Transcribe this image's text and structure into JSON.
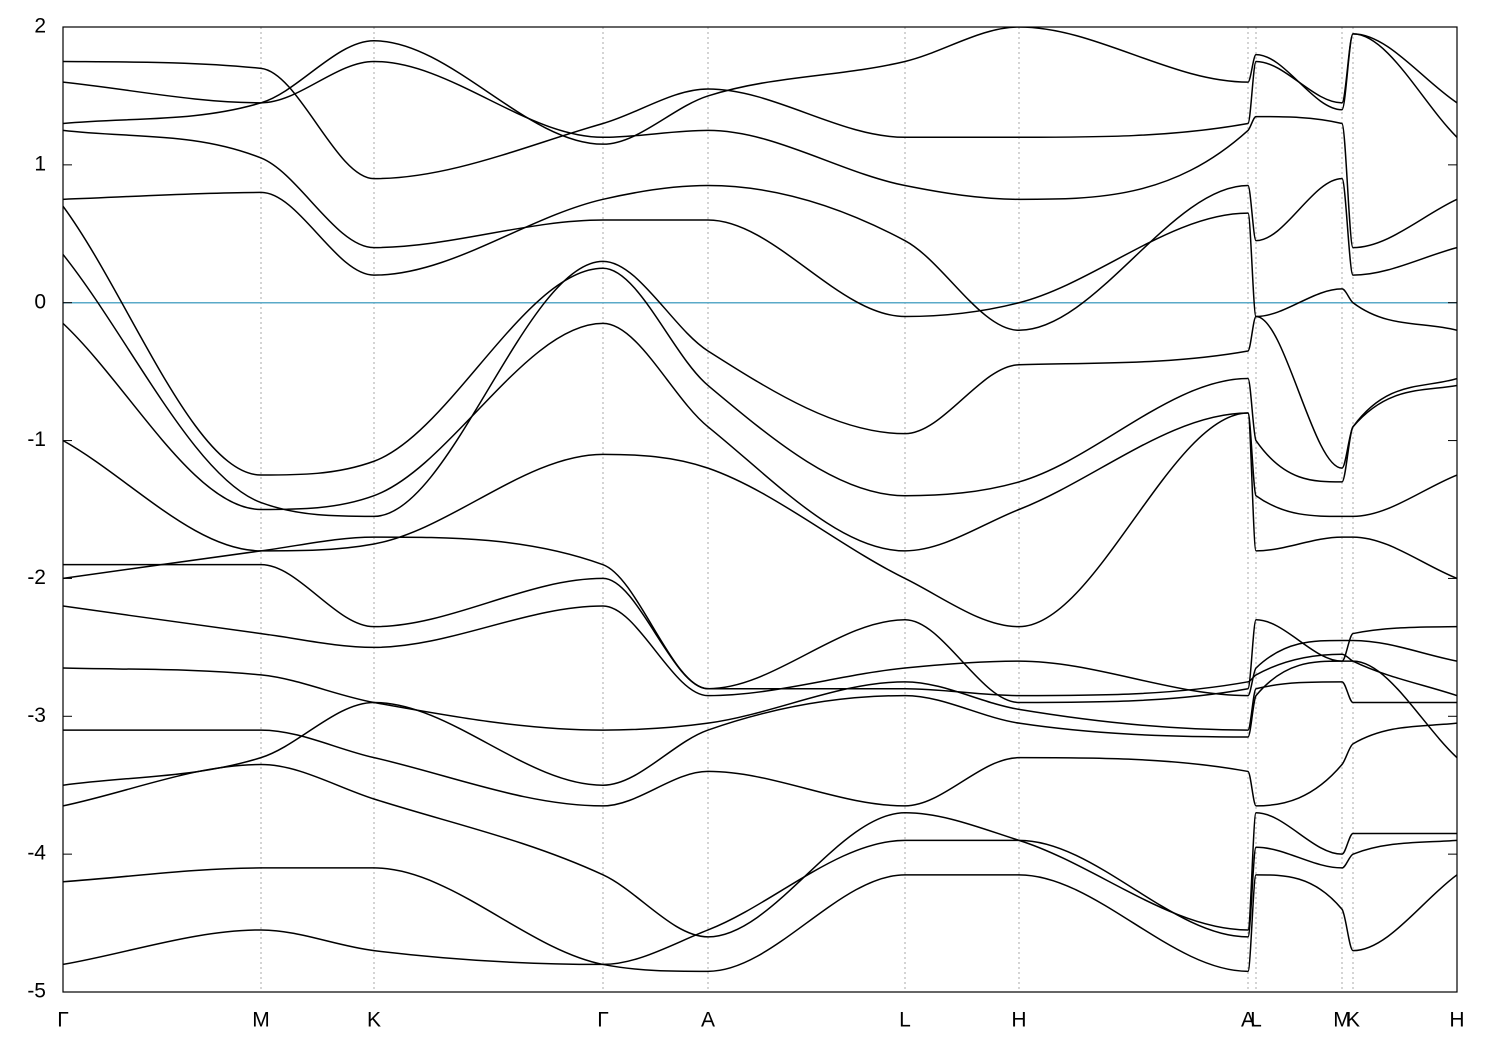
{
  "chart_data": {
    "type": "line",
    "x": [
      0,
      0.198,
      0.311,
      0.54,
      0.645,
      0.842,
      0.956,
      1.185,
      1.193,
      1.279,
      1.29,
      1.394
    ],
    "xlim": [
      0,
      1.394
    ],
    "xticks": [
      {
        "value": 0,
        "label": "Γ"
      },
      {
        "value": 0.198,
        "label": "M"
      },
      {
        "value": 0.311,
        "label": "K"
      },
      {
        "value": 0.54,
        "label": "Γ"
      },
      {
        "value": 0.645,
        "label": "A"
      },
      {
        "value": 0.842,
        "label": "L"
      },
      {
        "value": 0.956,
        "label": "H"
      },
      {
        "value": 1.185,
        "label": "A"
      },
      {
        "value": 1.193,
        "label": "L"
      },
      {
        "value": 1.279,
        "label": "M"
      },
      {
        "value": 1.29,
        "label": "K"
      },
      {
        "value": 1.394,
        "label": "H"
      }
    ],
    "ylim": [
      -5,
      2
    ],
    "yticks": [
      -5,
      -4,
      -3,
      -2,
      -1,
      0,
      1,
      2
    ],
    "x_grid": true,
    "grid_color": "#aaaaaa",
    "reference_line": {
      "value": 0,
      "color": "#5aaac8"
    },
    "series": [
      {
        "color": "#000000",
        "values": [
          0.7,
          -1.25,
          -1.15,
          0.25,
          -0.6,
          -1.4,
          -1.3,
          -0.55,
          -1.0,
          -1.3,
          -0.9,
          -0.6
        ]
      },
      {
        "color": "#000000",
        "values": [
          -0.15,
          -1.5,
          -1.4,
          -0.15,
          -0.9,
          -1.8,
          -1.5,
          -0.8,
          -1.4,
          -1.55,
          -1.55,
          -1.25
        ]
      },
      {
        "color": "#000000",
        "values": [
          0.75,
          0.8,
          0.2,
          0.75,
          0.85,
          0.45,
          -0.2,
          0.85,
          0.45,
          0.9,
          0.2,
          0.4
        ]
      },
      {
        "color": "#000000",
        "values": [
          1.25,
          1.05,
          0.4,
          0.6,
          0.6,
          -0.1,
          0.0,
          0.65,
          -0.1,
          0.1,
          0.0,
          -0.2
        ]
      },
      {
        "color": "#000000",
        "values": [
          1.6,
          1.45,
          1.75,
          1.2,
          1.25,
          0.85,
          0.75,
          1.25,
          1.35,
          1.3,
          0.4,
          0.75
        ]
      },
      {
        "color": "#000000",
        "values": [
          1.75,
          1.7,
          0.9,
          1.3,
          1.55,
          1.2,
          1.2,
          1.3,
          1.75,
          1.45,
          1.95,
          1.2
        ]
      },
      {
        "color": "#000000",
        "values": [
          -1.0,
          -1.8,
          -1.75,
          -1.1,
          -1.2,
          -2.0,
          -2.35,
          -0.8,
          -1.8,
          -1.7,
          -1.7,
          -2.0
        ]
      },
      {
        "color": "#000000",
        "values": [
          -1.9,
          -1.9,
          -2.35,
          -2.0,
          -2.8,
          -2.3,
          -2.9,
          -2.8,
          -2.3,
          -2.6,
          -2.4,
          -2.35
        ]
      },
      {
        "color": "#000000",
        "values": [
          -2.2,
          -2.4,
          -2.5,
          -2.2,
          -2.85,
          -2.65,
          -2.6,
          -2.85,
          -2.65,
          -2.45,
          -2.45,
          -2.6
        ]
      },
      {
        "color": "#000000",
        "values": [
          -2.65,
          -2.7,
          -2.9,
          -3.1,
          -3.05,
          -2.75,
          -2.95,
          -3.1,
          -2.8,
          -2.75,
          -2.9,
          -2.9
        ]
      },
      {
        "color": "#000000",
        "values": [
          -3.1,
          -3.1,
          -3.3,
          -3.65,
          -3.4,
          -3.65,
          -3.3,
          -3.4,
          -3.65,
          -3.35,
          -3.2,
          -3.05
        ]
      },
      {
        "color": "#000000",
        "values": [
          -3.65,
          -3.35,
          -3.6,
          -4.15,
          -4.6,
          -3.7,
          -3.9,
          -4.55,
          -3.7,
          -4.0,
          -3.85,
          -3.85
        ]
      },
      {
        "color": "#000000",
        "values": [
          -4.2,
          -4.1,
          -4.1,
          -4.8,
          -4.85,
          -4.15,
          -4.15,
          -4.85,
          -4.15,
          -4.4,
          -4.7,
          -4.15
        ]
      },
      {
        "color": "#000000",
        "values": [
          -4.8,
          -4.55,
          -4.7,
          -4.8,
          -4.55,
          -3.9,
          -3.9,
          -4.6,
          -3.95,
          -4.1,
          -4.0,
          -3.9
        ]
      },
      {
        "color": "#000000",
        "values": [
          0.35,
          -1.45,
          -1.55,
          0.3,
          -0.35,
          -0.95,
          -0.45,
          -0.35,
          -0.1,
          -1.2,
          -0.9,
          -0.55
        ]
      },
      {
        "color": "#000000",
        "values": [
          1.3,
          1.45,
          1.9,
          1.15,
          1.5,
          1.75,
          2.0,
          1.6,
          1.8,
          1.4,
          1.95,
          1.45
        ]
      },
      {
        "color": "#000000",
        "values": [
          -2.0,
          -1.8,
          -1.7,
          -1.9,
          -2.8,
          -2.8,
          -2.85,
          -2.75,
          -2.7,
          -2.55,
          -2.6,
          -2.85
        ]
      },
      {
        "color": "#000000",
        "values": [
          -3.5,
          -3.3,
          -2.9,
          -3.5,
          -3.1,
          -2.85,
          -3.05,
          -3.15,
          -2.85,
          -2.6,
          -2.6,
          -3.3
        ]
      }
    ]
  }
}
